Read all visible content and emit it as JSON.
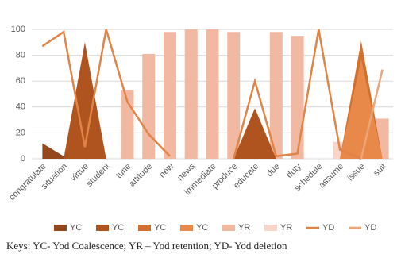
{
  "chart_data": {
    "type": "combo",
    "categories": [
      "congratulate",
      "situation",
      "virtue",
      "student",
      "tune",
      "attitude",
      "new",
      "news",
      "immediate",
      "produce",
      "educate",
      "due",
      "duty",
      "schedule",
      "assume",
      "issue",
      "suit"
    ],
    "series": [
      {
        "name": "YC",
        "kind": "area",
        "color": "#94461c",
        "values": [
          12,
          2,
          null,
          null,
          null,
          null,
          null,
          null,
          null,
          null,
          null,
          null,
          null,
          null,
          null,
          null,
          null
        ]
      },
      {
        "name": "YC",
        "kind": "area",
        "color": "#b0541f",
        "values": [
          null,
          0,
          90,
          0,
          null,
          null,
          null,
          null,
          null,
          0,
          39,
          0,
          null,
          null,
          null,
          null,
          null
        ]
      },
      {
        "name": "YC",
        "kind": "area",
        "color": "#d4702e",
        "values": [
          null,
          null,
          null,
          null,
          null,
          null,
          null,
          null,
          null,
          null,
          null,
          null,
          null,
          null,
          0,
          91,
          0
        ]
      },
      {
        "name": "YC",
        "kind": "area",
        "color": "#e8894a",
        "values": [
          null,
          null,
          null,
          null,
          null,
          null,
          null,
          null,
          null,
          null,
          null,
          null,
          null,
          null,
          0,
          77,
          0
        ]
      },
      {
        "name": "YR",
        "kind": "bar",
        "color": "#f2b9a2",
        "values": [
          null,
          null,
          null,
          null,
          53,
          81,
          98,
          100,
          100,
          98,
          null,
          98,
          95,
          null,
          6,
          7,
          31
        ]
      },
      {
        "name": "YR",
        "kind": "bar",
        "color": "#f8d5c8",
        "values": [
          null,
          null,
          null,
          null,
          null,
          null,
          null,
          null,
          null,
          null,
          null,
          null,
          null,
          null,
          13,
          null,
          null
        ]
      },
      {
        "name": "YD",
        "kind": "line",
        "color": "#e08447",
        "values": [
          87,
          98,
          9,
          100,
          44,
          19,
          2,
          null,
          null,
          0,
          60,
          2,
          4,
          100,
          7,
          0,
          null
        ]
      },
      {
        "name": "YD",
        "kind": "line",
        "color": "#eba57a",
        "values": [
          null,
          null,
          null,
          null,
          null,
          null,
          null,
          null,
          null,
          null,
          null,
          null,
          null,
          null,
          null,
          0,
          69
        ]
      }
    ],
    "ylim": [
      0,
      100
    ],
    "yticks": [
      0,
      20,
      40,
      60,
      80,
      100
    ],
    "grid": true,
    "note": "Keys: YC- Yod Coalescence; YR – Yod retention; YD- Yod deletion"
  }
}
